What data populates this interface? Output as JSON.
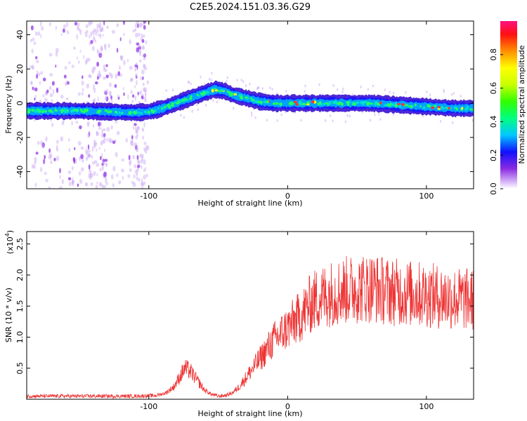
{
  "title": "C2E5.2024.151.03.36.G29",
  "chart_data": [
    {
      "type": "heatmap",
      "xlabel": "Height of straight line (km)",
      "ylabel": "Frequency (Hz)",
      "xlim": [
        -188,
        134
      ],
      "ylim": [
        -50,
        48
      ],
      "xticks": [
        -100,
        0,
        100
      ],
      "yticks": [
        -40,
        -20,
        0,
        20,
        40
      ],
      "ridge": {
        "x": [
          -188,
          -170,
          -150,
          -130,
          -110,
          -100,
          -90,
          -80,
          -70,
          -60,
          -52,
          -45,
          -40,
          -30,
          -20,
          -10,
          0,
          20,
          40,
          60,
          80,
          100,
          120,
          134
        ],
        "freq": [
          -4.5,
          -4.5,
          -4.5,
          -5,
          -5.5,
          -5,
          -3,
          0,
          3,
          6,
          8,
          7,
          5,
          3,
          1,
          0,
          0,
          0,
          0,
          0,
          -1,
          -2,
          -3,
          -3
        ]
      },
      "colorbar": {
        "label": "Normalized spectral amplitude",
        "range": [
          0.0,
          1.0
        ],
        "ticks": [
          "0.0",
          "0.2",
          "0.4",
          "0.6",
          "0.8"
        ],
        "tick_values": [
          0.0,
          0.2,
          0.4,
          0.6,
          0.8
        ]
      }
    },
    {
      "type": "line",
      "xlabel": "Height of straight line (km)",
      "ylabel": "SNR (10 * v/v)",
      "multiplier": "(x10",
      "multiplier_exp": "4",
      "multiplier_close": ")",
      "xlim": [
        -188,
        134
      ],
      "ylim": [
        0,
        2.7
      ],
      "xticks": [
        -100,
        0,
        100
      ],
      "yticks": [
        "0.5",
        "1.0",
        "1.5",
        "2.0",
        "2.5"
      ],
      "ytick_values": [
        0.5,
        1.0,
        1.5,
        2.0,
        2.5
      ],
      "color": "#ee3333",
      "series": [
        {
          "x": [
            -188,
            -150,
            -110,
            -95,
            -88,
            -82,
            -78,
            -74,
            -70,
            -65,
            -60,
            -55,
            -50,
            -45,
            -40,
            -35,
            -30,
            -25,
            -20,
            -15,
            -10,
            -5,
            0,
            5,
            10,
            15,
            20,
            25,
            30,
            40,
            50,
            60,
            70,
            80,
            90,
            100,
            110,
            120,
            134
          ],
          "values": [
            0.05,
            0.05,
            0.05,
            0.06,
            0.1,
            0.2,
            0.35,
            0.5,
            0.45,
            0.3,
            0.15,
            0.08,
            0.05,
            0.06,
            0.1,
            0.2,
            0.35,
            0.5,
            0.65,
            0.8,
            0.95,
            1.05,
            1.15,
            1.25,
            1.35,
            1.5,
            1.6,
            1.65,
            1.7,
            1.75,
            1.78,
            1.8,
            1.75,
            1.72,
            1.7,
            1.68,
            1.65,
            1.62,
            1.6
          ]
        }
      ]
    }
  ]
}
